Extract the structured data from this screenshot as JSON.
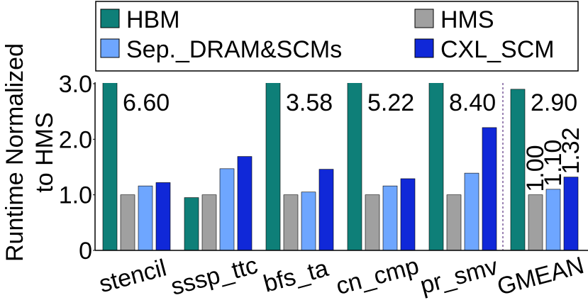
{
  "chart_data": {
    "type": "bar",
    "ylabel": [
      "Runtime Normalized",
      "to HMS"
    ],
    "categories": [
      "stencil",
      "sssp_ttc",
      "bfs_ta",
      "cn_cmp",
      "pr_smv",
      "GMEAN"
    ],
    "series": [
      {
        "name": "HBM",
        "color": "#0e7f78",
        "values": [
          6.6,
          0.95,
          3.58,
          5.22,
          8.4,
          2.9
        ],
        "value_labels": [
          "6.60",
          null,
          "3.58",
          "5.22",
          "8.40",
          "2.90"
        ]
      },
      {
        "name": "HMS",
        "color": "#a0a0a0",
        "values": [
          1,
          1,
          1,
          1,
          1,
          1
        ],
        "value_labels": [
          null,
          null,
          null,
          null,
          null,
          "1.00"
        ]
      },
      {
        "name": "Sep._DRAM&SCMs",
        "color": "#6ea6ff",
        "values": [
          1.16,
          1.47,
          1.05,
          1.16,
          1.39,
          1.1
        ],
        "value_labels": [
          null,
          null,
          null,
          null,
          null,
          "1.10"
        ]
      },
      {
        "name": "CXL_SCM",
        "color": "#1028d8",
        "values": [
          1.22,
          1.69,
          1.46,
          1.29,
          2.21,
          1.32
        ],
        "value_labels": [
          null,
          null,
          null,
          null,
          null,
          "1.32"
        ]
      }
    ],
    "ylim": [
      0,
      3
    ],
    "yticks": [
      0,
      {
        "value": 1,
        "label": "1.0"
      },
      {
        "value": 2,
        "label": "2.0"
      },
      {
        "value": 3,
        "label": "3.0"
      }
    ],
    "grid": false
  }
}
